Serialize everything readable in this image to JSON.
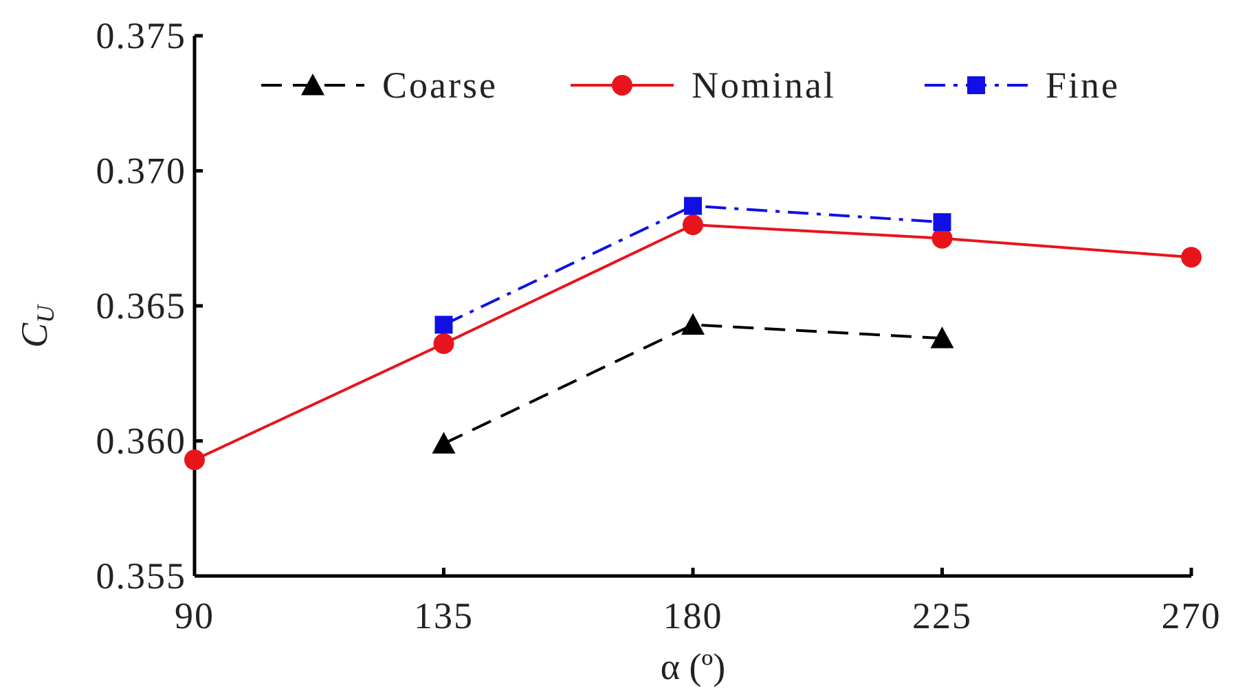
{
  "chart_data": {
    "type": "line",
    "title": "",
    "xlabel": "α (º)",
    "ylabel_main": "C",
    "ylabel_sub": "U",
    "xlim": [
      90,
      270
    ],
    "ylim": [
      0.355,
      0.375
    ],
    "x_ticks": [
      "90",
      "135",
      "180",
      "225",
      "270"
    ],
    "y_ticks": [
      "0.355",
      "0.360",
      "0.365",
      "0.370",
      "0.375"
    ],
    "grid": false,
    "legend_position": "top",
    "series": [
      {
        "name": "Coarse",
        "color": "#000000",
        "dash": "dashed",
        "marker": "triangle",
        "x": [
          135,
          180,
          225
        ],
        "y": [
          0.3599,
          0.3643,
          0.3638
        ]
      },
      {
        "name": "Nominal",
        "color": "#e8141b",
        "dash": "solid",
        "marker": "circle",
        "x": [
          90,
          135,
          180,
          225,
          270
        ],
        "y": [
          0.3593,
          0.3636,
          0.368,
          0.3675,
          0.3668
        ]
      },
      {
        "name": "Fine",
        "color": "#1010e6",
        "dash": "dashdot",
        "marker": "square",
        "x": [
          135,
          180,
          225
        ],
        "y": [
          0.3643,
          0.3687,
          0.3681
        ]
      }
    ]
  }
}
